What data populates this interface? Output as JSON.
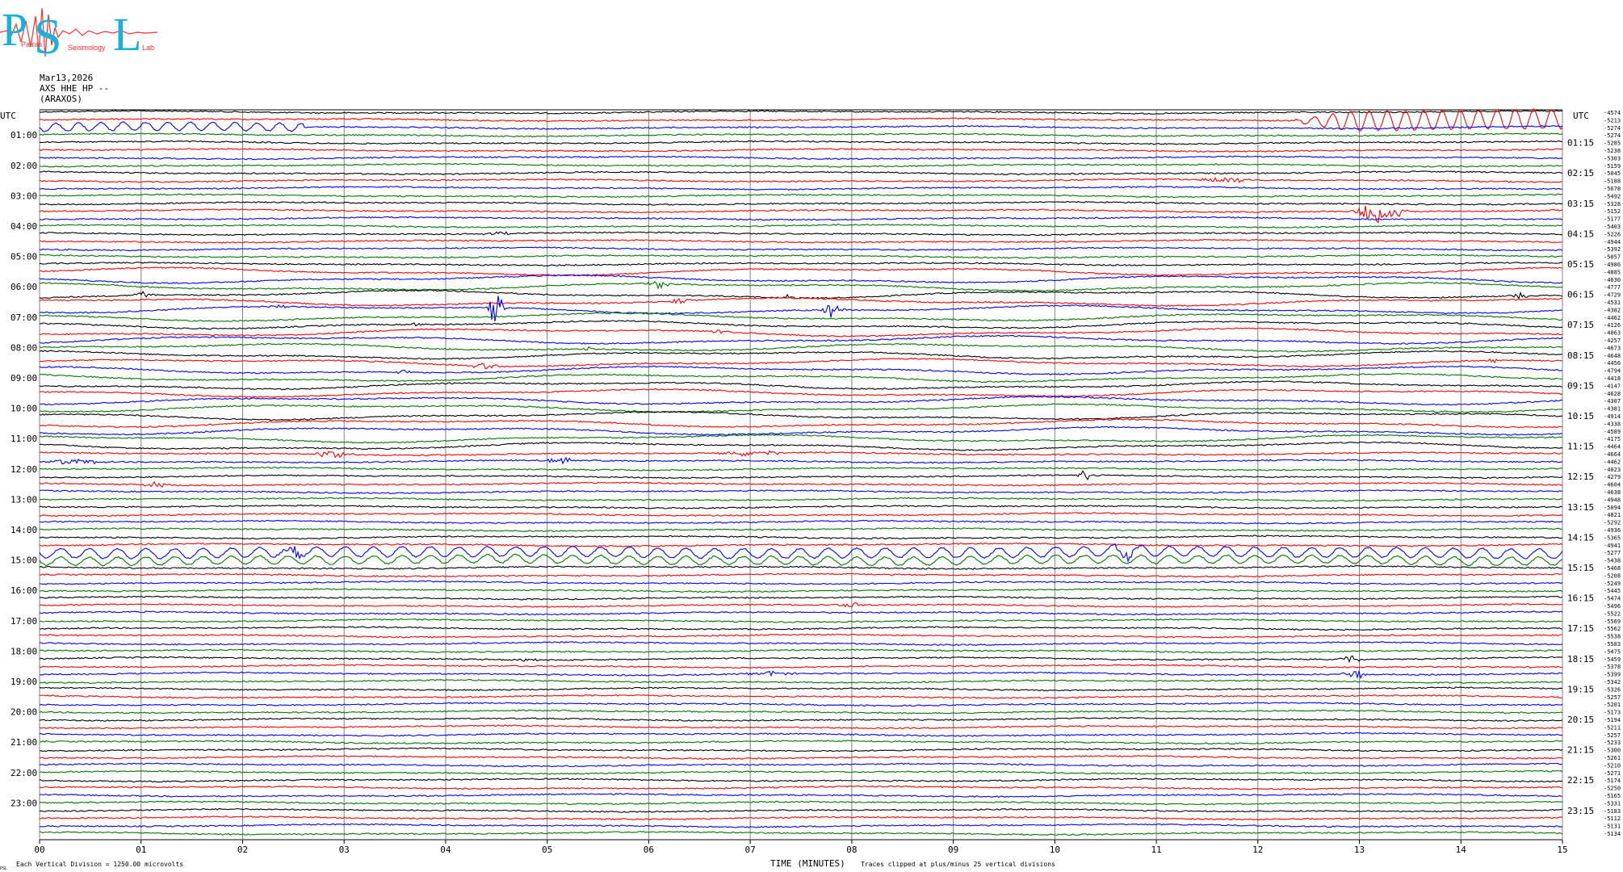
{
  "logo": {
    "letters": "PSL",
    "words": [
      "Patras",
      "Seismology",
      "Lab"
    ]
  },
  "header": {
    "date": "Mar13,2026",
    "channel": "AXS HHE HP --",
    "station": "(ARAXOS)"
  },
  "corner_left": "UTC",
  "corner_right": "UTC",
  "footer": {
    "scale": "Each Vertical Division = 1250.00 microvolts",
    "clip": "Traces clipped at plus/minus 25 vertical divisions",
    "corner_mark": "PSL"
  },
  "colors": {
    "black": "#000000",
    "red": "#ff0000",
    "blue": "#0000ff",
    "green": "#007700",
    "grid": "#808080"
  },
  "chart_data": {
    "type": "line",
    "title": "Mar13,2026 AXS HHE HP -- (ARAXOS)",
    "xlabel": "TIME (MINUTES)",
    "ylabel": "UTC",
    "xlim": [
      0,
      15
    ],
    "x_ticks": [
      "00",
      "01",
      "02",
      "03",
      "04",
      "05",
      "06",
      "07",
      "08",
      "09",
      "10",
      "11",
      "12",
      "13",
      "14",
      "15"
    ],
    "grid": "vertical minute lines",
    "trace_minutes": 15,
    "trace_color_cycle": [
      "black",
      "red",
      "blue",
      "green"
    ],
    "left_labels": [
      "01:00",
      "02:00",
      "03:00",
      "04:00",
      "05:00",
      "06:00",
      "07:00",
      "08:00",
      "09:00",
      "10:00",
      "11:00",
      "12:00",
      "13:00",
      "14:00",
      "15:00",
      "16:00",
      "17:00",
      "18:00",
      "19:00",
      "20:00",
      "21:00",
      "22:00",
      "23:00"
    ],
    "right_labels": [
      "01:15",
      "02:15",
      "03:15",
      "04:15",
      "05:15",
      "06:15",
      "07:15",
      "08:15",
      "09:15",
      "10:15",
      "11:15",
      "12:15",
      "13:15",
      "14:15",
      "15:15",
      "16:15",
      "17:15",
      "18:15",
      "19:15",
      "20:15",
      "21:15",
      "22:15",
      "23:15"
    ],
    "trace_offsets": [
      -4574,
      -5213,
      -5274,
      -5274,
      -5285,
      -5238,
      -5303,
      -5159,
      -5045,
      -5188,
      -5678,
      -5492,
      -5328,
      -5152,
      -5177,
      -5403,
      -5226,
      -4944,
      -5392,
      -5057,
      -4986,
      -4885,
      -4630,
      -4777,
      -4729,
      -4531,
      -4382,
      -4462,
      -4126,
      -4063,
      -4257,
      -4673,
      -4648,
      -4456,
      -4794,
      -4418,
      -4147,
      -4628,
      -4307,
      -4381,
      -4914,
      -4338,
      -4589,
      -4175,
      -4464,
      -4664,
      -4462,
      -4023,
      -4279,
      -4604,
      -4638,
      -4948,
      -5094,
      -4821,
      -5292,
      -4936,
      -5365,
      -4941,
      -5277,
      -5438,
      -5468,
      -5208,
      -5249,
      -5445,
      -5474,
      -5496,
      -5522,
      -5569,
      -5562,
      -5538,
      -5583,
      -5475,
      -5459,
      -5378,
      -5399,
      -5342,
      -5326,
      -5257,
      -5201,
      -5173,
      -5194,
      -5211,
      -5257,
      -5233,
      -5300,
      -5261,
      -5210,
      -5271,
      -5174,
      -5250,
      -5165,
      -5331,
      -5183,
      -5112,
      -5131,
      -5134
    ],
    "events": [
      {
        "row": 1,
        "minute": 13.5,
        "width": 1.2,
        "amp": 12,
        "kind": "surface"
      },
      {
        "row": 9,
        "minute": 11.7,
        "width": 0.35,
        "amp": 4
      },
      {
        "row": 13,
        "minute": 13.2,
        "width": 0.3,
        "amp": 16
      },
      {
        "row": 16,
        "minute": 4.5,
        "width": 0.3,
        "amp": 2
      },
      {
        "row": 24,
        "minute": 1.0,
        "width": 0.15,
        "amp": 6
      },
      {
        "row": 24,
        "minute": 7.4,
        "width": 0.1,
        "amp": 5
      },
      {
        "row": 24,
        "minute": 14.6,
        "width": 0.1,
        "amp": 5
      },
      {
        "row": 23,
        "minute": 6.1,
        "width": 0.15,
        "amp": 6
      },
      {
        "row": 25,
        "minute": 6.3,
        "width": 0.15,
        "amp": 4
      },
      {
        "row": 26,
        "minute": 4.5,
        "width": 0.1,
        "amp": 30
      },
      {
        "row": 26,
        "minute": 7.8,
        "width": 0.15,
        "amp": 10
      },
      {
        "row": 26,
        "minute": 2.35,
        "width": 0.1,
        "amp": 3
      },
      {
        "row": 28,
        "minute": 3.7,
        "width": 0.1,
        "amp": 3
      },
      {
        "row": 29,
        "minute": 6.7,
        "width": 0.1,
        "amp": 3
      },
      {
        "row": 31,
        "minute": 5.4,
        "width": 0.1,
        "amp": 3
      },
      {
        "row": 33,
        "minute": 4.4,
        "width": 0.2,
        "amp": 4
      },
      {
        "row": 33,
        "minute": 14.3,
        "width": 0.1,
        "amp": 4
      },
      {
        "row": 34,
        "minute": 3.6,
        "width": 0.1,
        "amp": 3
      },
      {
        "row": 45,
        "minute": 2.9,
        "width": 0.25,
        "amp": 5
      },
      {
        "row": 45,
        "minute": 7.0,
        "width": 0.5,
        "amp": 4
      },
      {
        "row": 46,
        "minute": 0.35,
        "width": 0.4,
        "amp": 4
      },
      {
        "row": 46,
        "minute": 5.1,
        "width": 0.2,
        "amp": 5
      },
      {
        "row": 48,
        "minute": 10.3,
        "width": 0.08,
        "amp": 8
      },
      {
        "row": 49,
        "minute": 1.15,
        "width": 0.15,
        "amp": 4
      },
      {
        "row": 58,
        "minute": 2.5,
        "width": 0.2,
        "amp": 7
      },
      {
        "row": 58,
        "minute": 10.7,
        "width": 0.2,
        "amp": 7
      },
      {
        "row": 65,
        "minute": 8.0,
        "width": 0.2,
        "amp": 3
      },
      {
        "row": 72,
        "minute": 4.8,
        "width": 0.15,
        "amp": 3
      },
      {
        "row": 72,
        "minute": 12.9,
        "width": 0.15,
        "amp": 6
      },
      {
        "row": 74,
        "minute": 7.2,
        "width": 0.3,
        "amp": 3
      },
      {
        "row": 74,
        "minute": 12.95,
        "width": 0.15,
        "amp": 8
      }
    ],
    "wave_trains": [
      {
        "row": 2,
        "from": 0,
        "to": 2.6,
        "period": 0.22,
        "amp": 5
      },
      {
        "row": 58,
        "from": 0,
        "to": 15,
        "period": 0.28,
        "amp": 6
      },
      {
        "row": 59,
        "from": 0,
        "to": 15,
        "period": 0.28,
        "amp": 5
      }
    ]
  }
}
